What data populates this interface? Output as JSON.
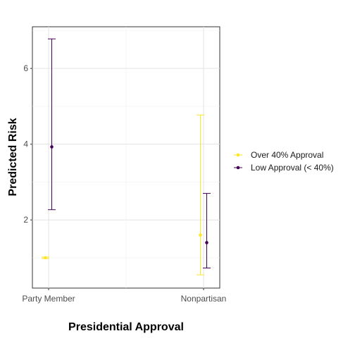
{
  "chart_data": {
    "type": "errorbar",
    "xlabel": "Presidential Approval",
    "ylabel": "Predicted Risk",
    "categories": [
      "Party Member",
      "Nonpartisan"
    ],
    "y_ticks": [
      2,
      4,
      6
    ],
    "ylim": [
      0.2,
      7.1
    ],
    "grid": true,
    "legend_position": "right",
    "series": [
      {
        "name": "Over 40% Approval",
        "color": "#FDE725",
        "points": [
          {
            "category": "Party Member",
            "estimate": 1.0,
            "lower": 0.98,
            "upper": 1.02
          },
          {
            "category": "Nonpartisan",
            "estimate": 1.6,
            "lower": 0.55,
            "upper": 4.77
          }
        ]
      },
      {
        "name": "Low Approval (< 40%)",
        "color": "#440154",
        "points": [
          {
            "category": "Party Member",
            "estimate": 3.93,
            "lower": 2.27,
            "upper": 6.78
          },
          {
            "category": "Nonpartisan",
            "estimate": 1.4,
            "lower": 0.73,
            "upper": 2.7
          }
        ]
      }
    ]
  }
}
